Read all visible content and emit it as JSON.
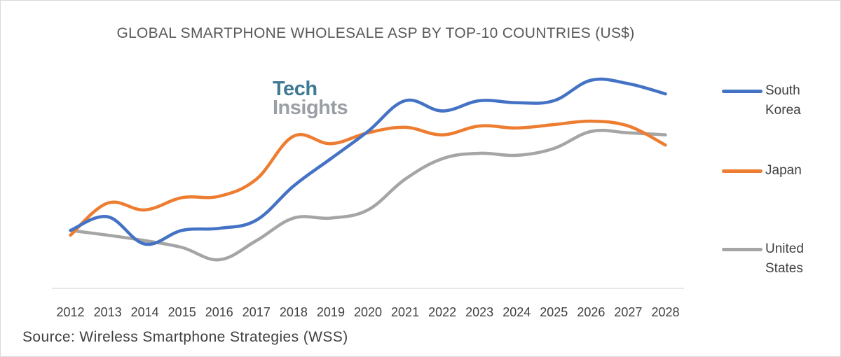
{
  "chart_data": {
    "type": "line",
    "title": "GLOBAL SMARTPHONE WHOLESALE ASP BY TOP-10 COUNTRIES (US$)",
    "xlabel": "",
    "ylabel": "",
    "categories": [
      "2012",
      "2013",
      "2014",
      "2015",
      "2016",
      "2017",
      "2018",
      "2019",
      "2020",
      "2021",
      "2022",
      "2023",
      "2024",
      "2025",
      "2026",
      "2027",
      "2028"
    ],
    "ylim": [
      0,
      320
    ],
    "grid": false,
    "legend": "right",
    "y_axis_visible": false,
    "series": [
      {
        "name": "South Korea",
        "color": "#4472c4",
        "values": [
          85,
          105,
          65,
          85,
          88,
          100,
          150,
          190,
          230,
          275,
          260,
          275,
          272,
          275,
          305,
          300,
          285
        ]
      },
      {
        "name": "Japan",
        "color": "#ed7d31",
        "values": [
          78,
          125,
          115,
          133,
          135,
          160,
          223,
          212,
          228,
          236,
          225,
          238,
          235,
          240,
          245,
          238,
          210
        ]
      },
      {
        "name": "United States",
        "color": "#a5a5a5",
        "values": [
          85,
          78,
          70,
          60,
          42,
          70,
          103,
          103,
          115,
          160,
          190,
          198,
          195,
          205,
          230,
          228,
          225
        ]
      }
    ]
  },
  "legend_labels": {
    "south_korea_l1": "South",
    "south_korea_l2": "Korea",
    "japan": "Japan",
    "united_states_l1": "United",
    "united_states_l2": "States"
  },
  "logo": {
    "line1": "Tech",
    "line2": "Insights"
  },
  "source": "Source: Wireless Smartphone Strategies (WSS)"
}
